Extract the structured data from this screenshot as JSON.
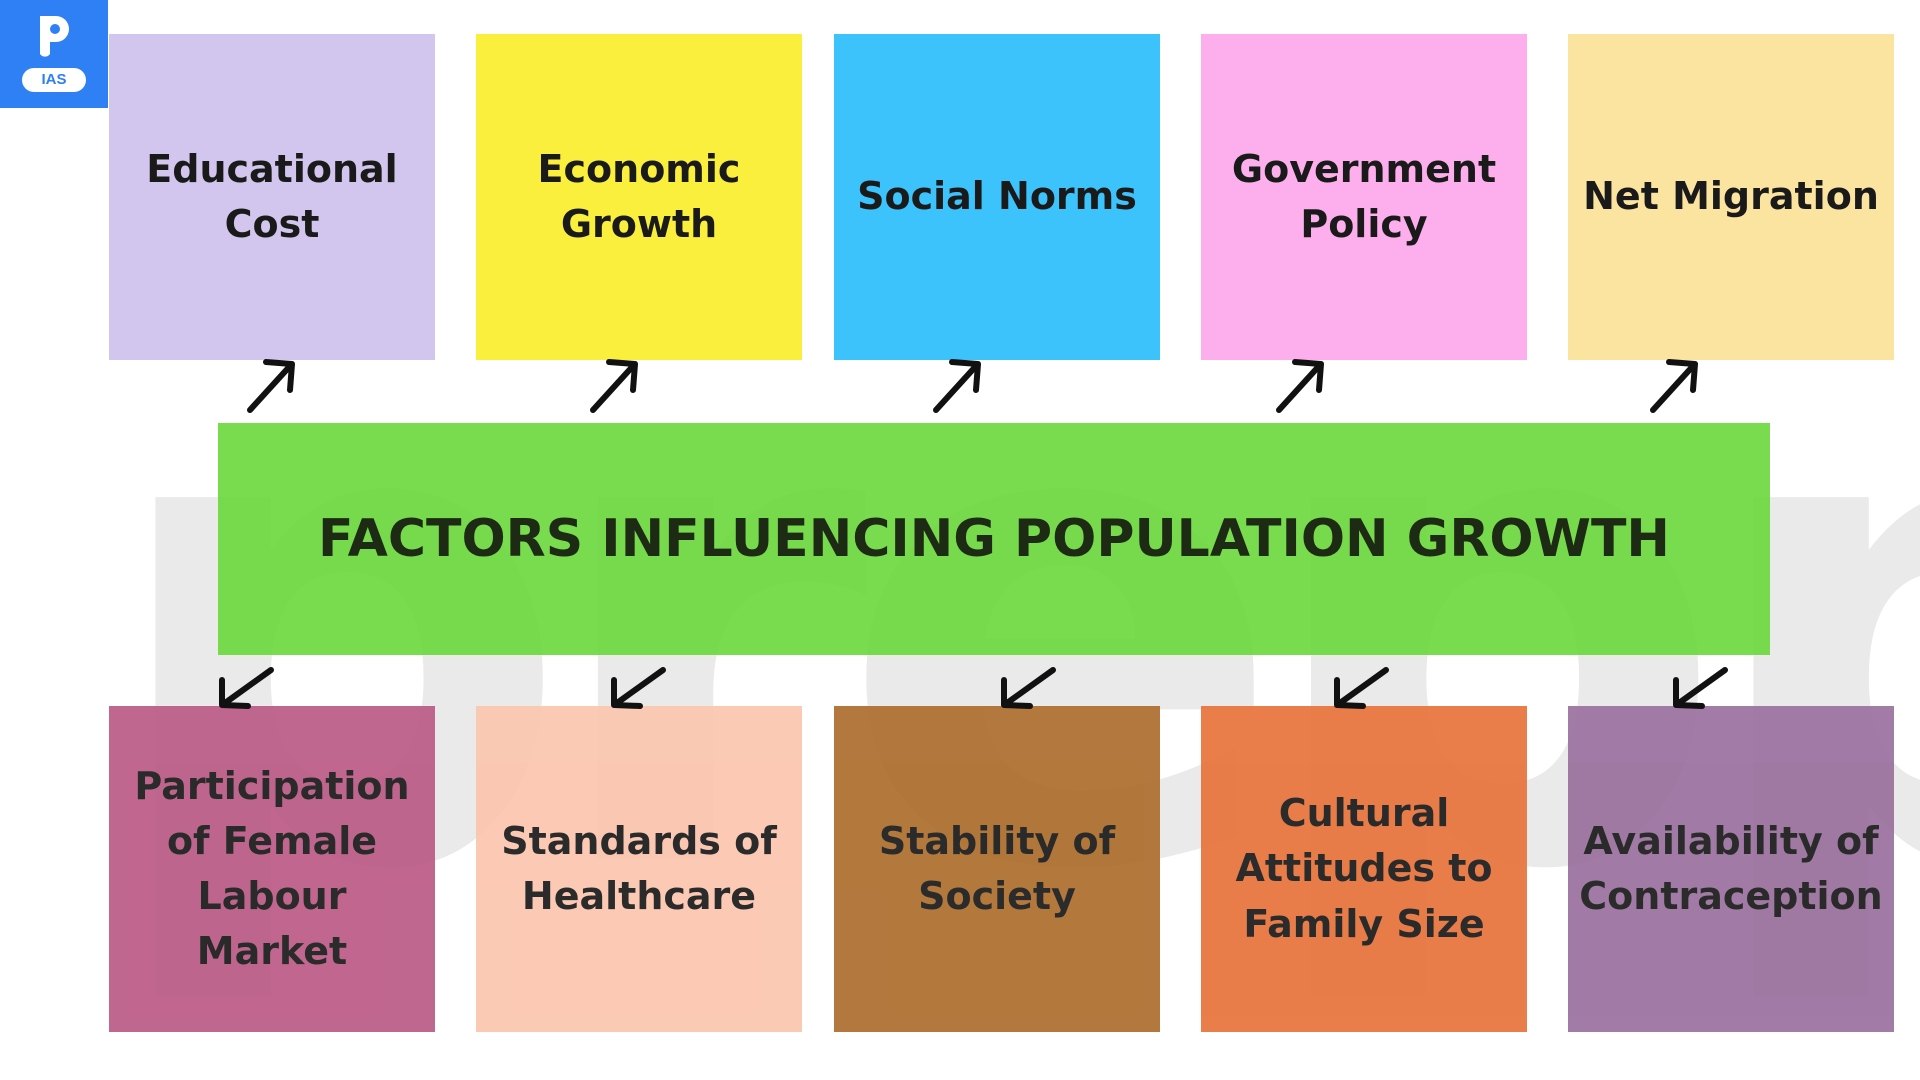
{
  "logo": {
    "badge_text": "IAS",
    "brand_color": "#2f7ff5"
  },
  "watermark": {
    "text": "prepp"
  },
  "center": {
    "title": "FACTORS INFLUENCING POPULATION GROWTH",
    "color": "#66d636"
  },
  "top_factors": [
    {
      "label": "Educational Cost",
      "color": "#d2c6ee"
    },
    {
      "label": "Economic Growth",
      "color": "#f9ef3c"
    },
    {
      "label": "Social Norms",
      "color": "#3cc3fc"
    },
    {
      "label": "Government Policy",
      "color": "#fdaeec"
    },
    {
      "label": "Net Migration",
      "color": "#fbe3a0"
    }
  ],
  "bottom_factors": [
    {
      "label": "Participation of Female Labour Market",
      "color": "#bb5a86"
    },
    {
      "label": "Standards of Healthcare",
      "color": "#fbc5ae"
    },
    {
      "label": "Stability of Society",
      "color": "#ad6d2c"
    },
    {
      "label": "Cultural Attitudes to Family Size",
      "color": "#e8733b"
    },
    {
      "label": "Availability of Contraception",
      "color": "#9a709e"
    }
  ],
  "arrow_icon": "diagonal-arrow-icon"
}
